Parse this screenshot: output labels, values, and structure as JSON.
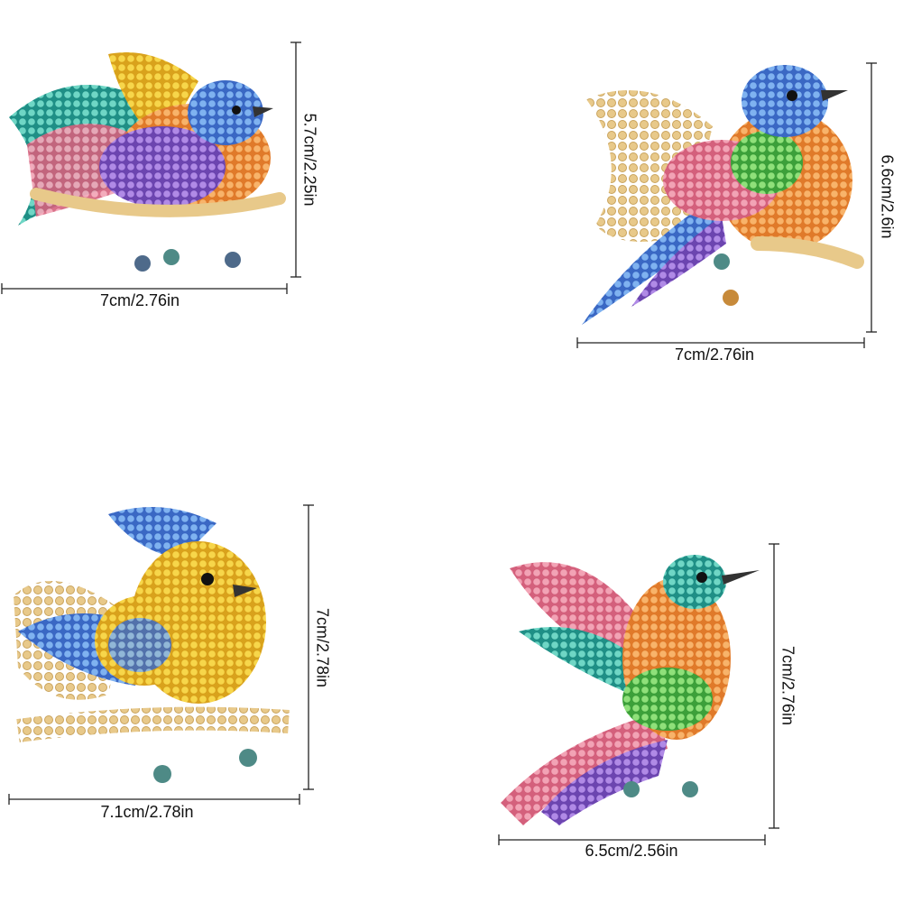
{
  "items": [
    {
      "width": "7cm/2.76in",
      "height": "5.7cm/2.25in"
    },
    {
      "width": "7cm/2.76in",
      "height": "6.6cm/2.6in"
    },
    {
      "width": "7.1cm/2.78in",
      "height": "7cm/2.78in"
    },
    {
      "width": "6.5cm/2.56in",
      "height": "7cm/2.76in"
    }
  ]
}
